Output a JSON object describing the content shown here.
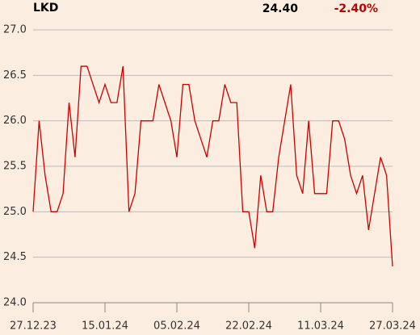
{
  "header": {
    "symbol": "LKD",
    "last": "24.40",
    "change": "-2.40%"
  },
  "chart_data": {
    "type": "line",
    "categories": [
      "27.12.23",
      null,
      null,
      null,
      null,
      null,
      null,
      null,
      null,
      null,
      null,
      null,
      "15.01.24",
      null,
      null,
      null,
      null,
      null,
      null,
      null,
      null,
      null,
      null,
      null,
      "05.02.24",
      null,
      null,
      null,
      null,
      null,
      null,
      null,
      null,
      null,
      null,
      null,
      "22.02.24",
      null,
      null,
      null,
      null,
      null,
      null,
      null,
      null,
      null,
      null,
      null,
      "11.03.24",
      null,
      null,
      null,
      null,
      null,
      null,
      null,
      null,
      null,
      null,
      null,
      "27.03.24"
    ],
    "series": [
      {
        "name": "LKD",
        "color": "#cc0000",
        "values": [
          25.0,
          26.0,
          25.4,
          25.0,
          25.0,
          25.2,
          26.2,
          25.6,
          26.6,
          26.6,
          26.4,
          26.2,
          26.4,
          26.2,
          26.2,
          26.6,
          25.0,
          25.2,
          26.0,
          26.0,
          26.0,
          26.4,
          26.2,
          26.0,
          25.6,
          26.4,
          26.4,
          26.0,
          25.8,
          25.6,
          26.0,
          26.0,
          26.4,
          26.2,
          26.2,
          25.0,
          25.0,
          24.6,
          25.4,
          25.0,
          25.0,
          25.6,
          26.0,
          26.4,
          25.4,
          25.2,
          26.0,
          25.2,
          25.2,
          25.2,
          26.0,
          26.0,
          25.8,
          25.4,
          25.2,
          25.4,
          24.8,
          25.2,
          25.6,
          25.4,
          24.4
        ]
      }
    ],
    "ylim": [
      24.0,
      27.0
    ],
    "yticks": [
      {
        "value": 24.0,
        "label": "24.0"
      },
      {
        "value": 24.5,
        "label": "24.5"
      },
      {
        "value": 25.0,
        "label": "25.0"
      },
      {
        "value": 25.5,
        "label": "25.5"
      },
      {
        "value": 26.0,
        "label": "26.0"
      },
      {
        "value": 26.5,
        "label": "26.5"
      },
      {
        "value": 27.0,
        "label": "27.0"
      }
    ],
    "grid": true
  }
}
